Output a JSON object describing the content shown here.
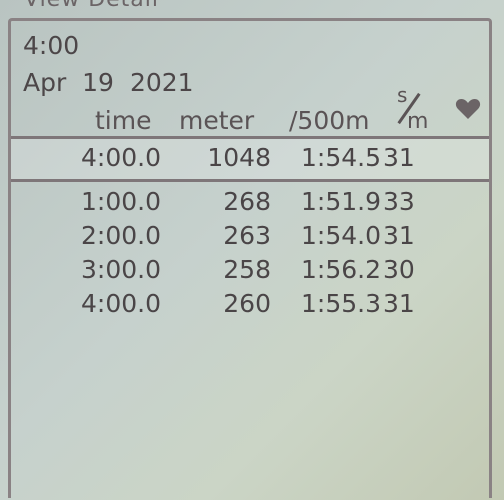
{
  "top_title": "View Detail",
  "header": {
    "workout": "4:00",
    "date_month_day": "Apr  19",
    "date_year": "2021"
  },
  "columns": {
    "time": "time",
    "meter": "meter",
    "pace": "/500m",
    "spm_s": "s",
    "spm_m": "m",
    "heart_icon": "heart-icon"
  },
  "summary": {
    "time": "4:00.0",
    "meter": "1048",
    "pace": "1:54.5",
    "spm": "31"
  },
  "splits": [
    {
      "time": "1:00.0",
      "meter": "268",
      "pace": "1:51.9",
      "spm": "33"
    },
    {
      "time": "2:00.0",
      "meter": "263",
      "pace": "1:54.0",
      "spm": "31"
    },
    {
      "time": "3:00.0",
      "meter": "258",
      "pace": "1:56.2",
      "spm": "30"
    },
    {
      "time": "4:00.0",
      "meter": "260",
      "pace": "1:55.3",
      "spm": "31"
    }
  ],
  "colors": {
    "text": "#4a4547",
    "lcd_background": "#c6d1cd",
    "divider": "#7e7679"
  }
}
